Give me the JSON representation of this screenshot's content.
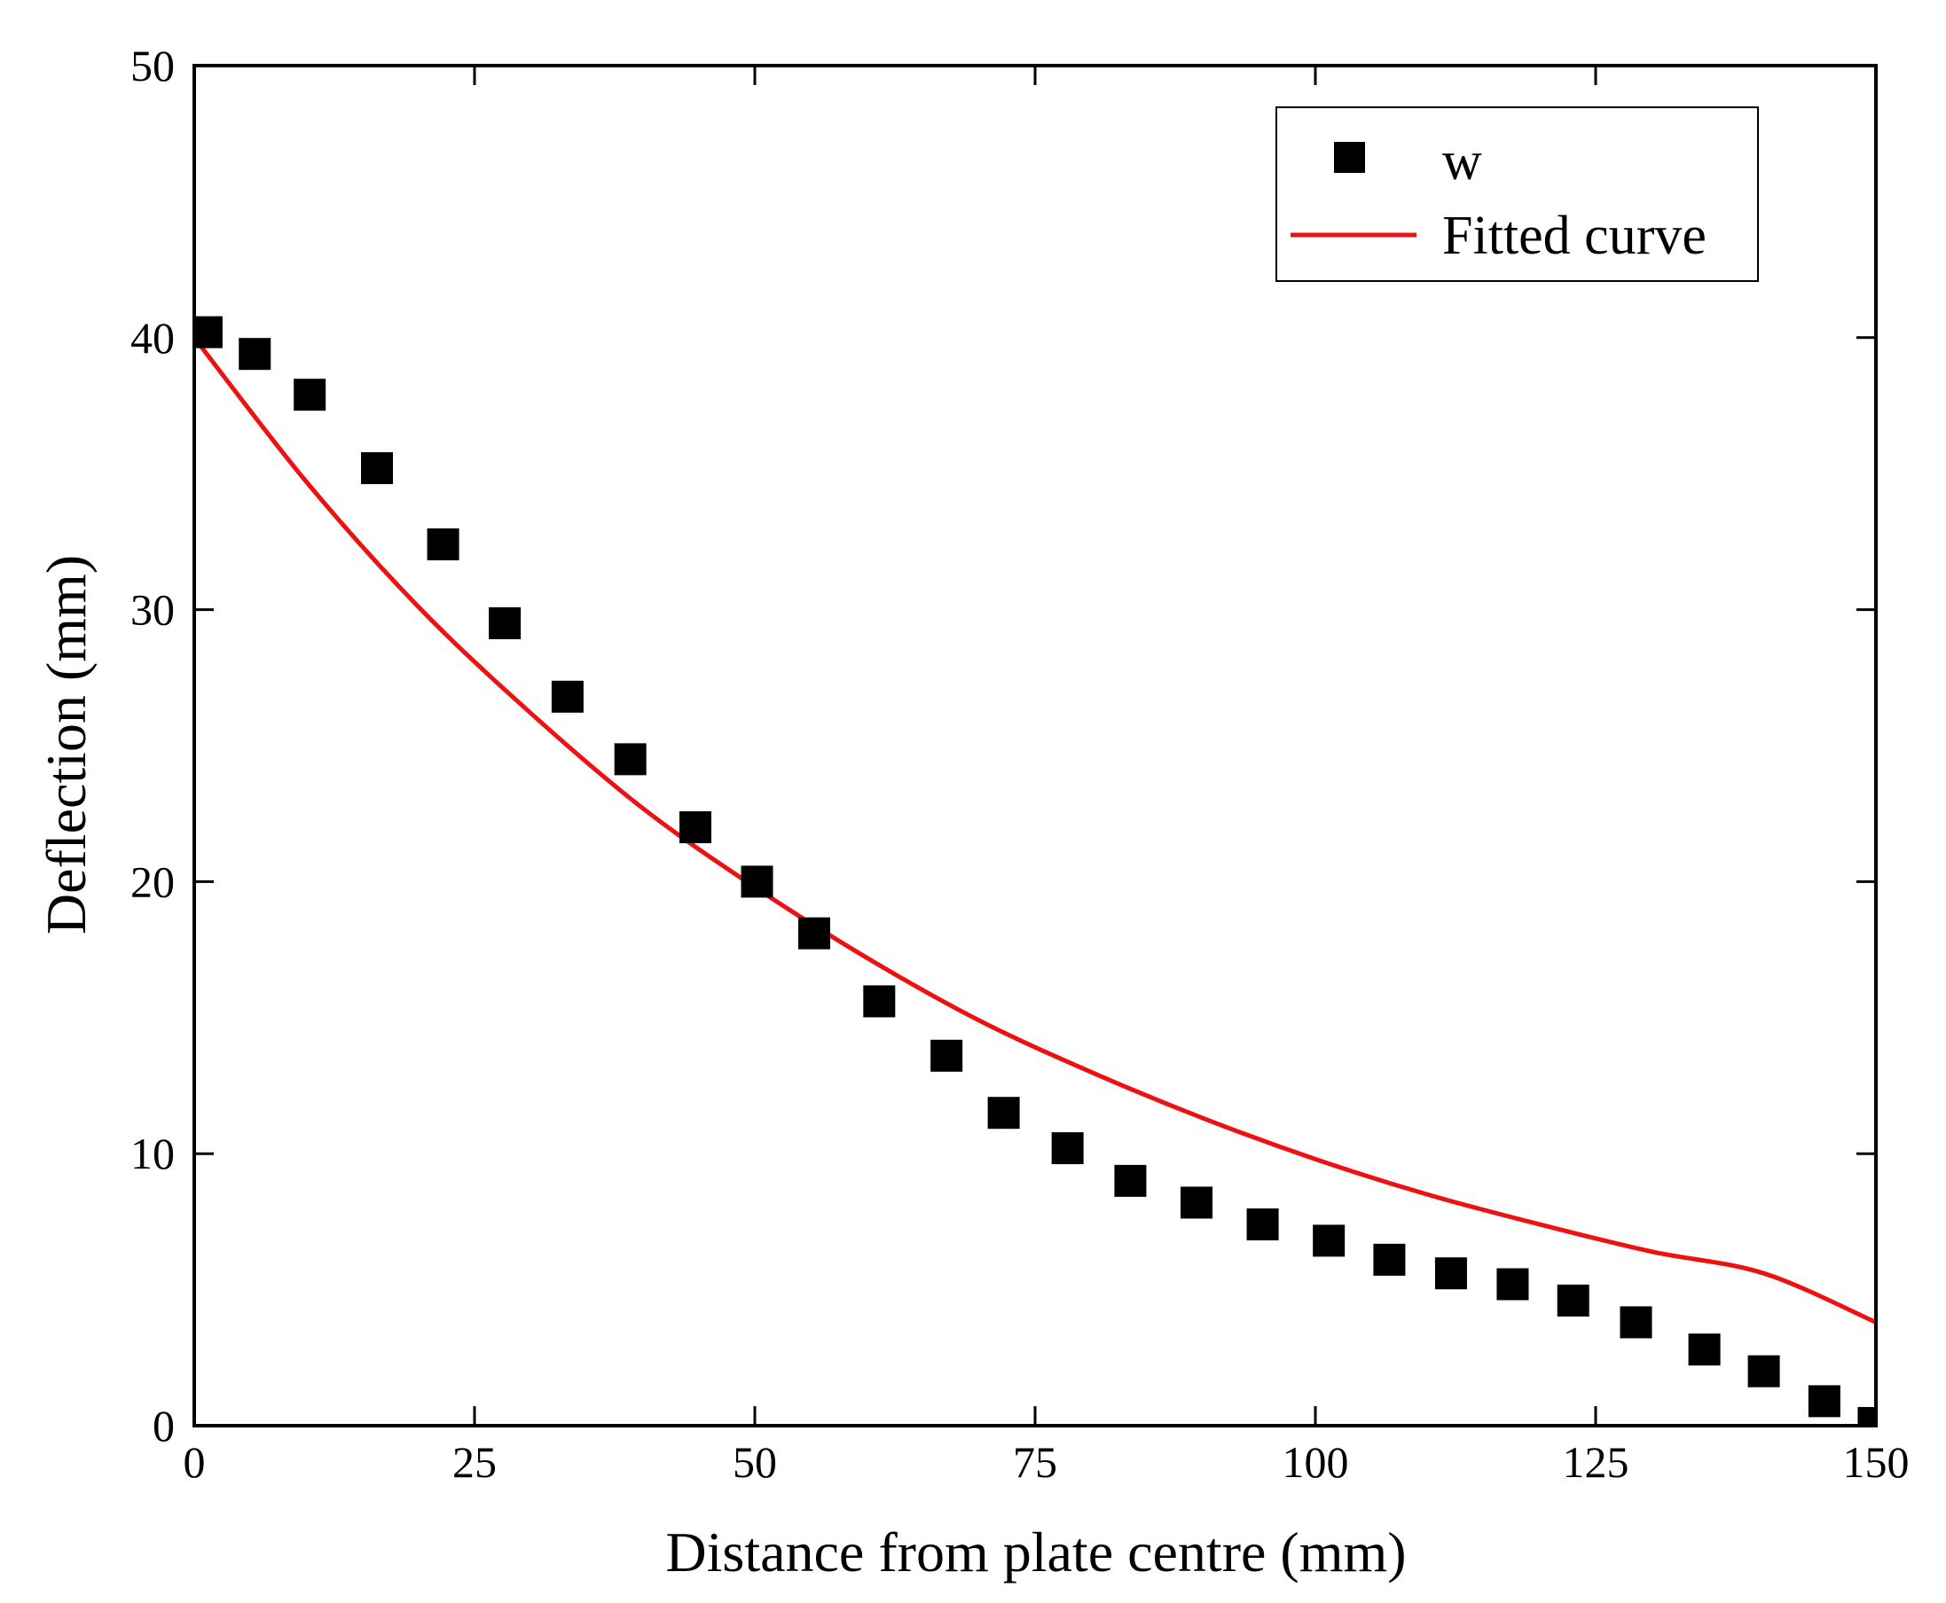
{
  "chart_data": {
    "type": "scatter",
    "title": "",
    "xlabel": "Distance from plate centre (mm)",
    "ylabel": "Deflection (mm)",
    "xlim": [
      0,
      150
    ],
    "ylim": [
      0,
      50
    ],
    "xticks": [
      0,
      25,
      50,
      75,
      100,
      125,
      150
    ],
    "yticks": [
      0,
      10,
      20,
      30,
      40,
      50
    ],
    "xtick_labels": [
      "0",
      "25",
      "50",
      "75",
      "100",
      "125",
      "150"
    ],
    "ytick_labels": [
      "0",
      "10",
      "20",
      "30",
      "40",
      "50"
    ],
    "grid": false,
    "legend_position": "top-right",
    "series": [
      {
        "name": "w",
        "kind": "scatter",
        "marker": "square",
        "color": "#000000",
        "x": [
          1.1,
          5.4,
          10.3,
          16.3,
          22.2,
          27.7,
          33.3,
          38.9,
          44.7,
          50.2,
          55.3,
          61.1,
          67.1,
          72.2,
          77.9,
          83.5,
          89.4,
          95.3,
          101.2,
          106.6,
          112.1,
          117.6,
          123.0,
          128.6,
          134.7,
          140.0,
          145.4,
          149.8
        ],
        "y": [
          40.2,
          39.4,
          37.9,
          35.2,
          32.4,
          29.5,
          26.8,
          24.5,
          22.0,
          20.0,
          18.1,
          15.6,
          13.6,
          11.5,
          10.2,
          9.0,
          8.2,
          7.4,
          6.8,
          6.1,
          5.6,
          5.2,
          4.6,
          3.8,
          2.8,
          2.0,
          0.9,
          0.1
        ]
      },
      {
        "name": "Fitted curve",
        "kind": "line",
        "color": "#ee1111",
        "x": [
          0,
          10,
          20,
          30,
          40,
          50,
          60,
          70,
          80,
          90,
          100,
          110,
          120,
          130,
          140,
          150
        ],
        "y": [
          40.0,
          34.7,
          30.1,
          26.2,
          22.7,
          19.8,
          17.2,
          14.9,
          13.0,
          11.3,
          9.8,
          8.5,
          7.4,
          6.4,
          5.6,
          3.8
        ]
      }
    ]
  }
}
